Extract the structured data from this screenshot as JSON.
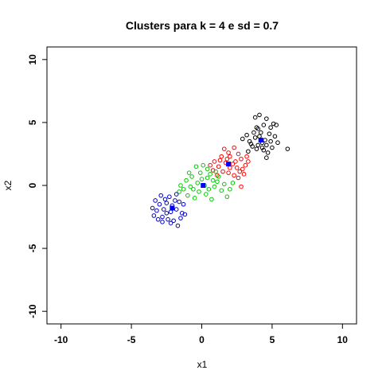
{
  "chart_data": {
    "type": "scatter",
    "title": "Clusters para k =  4  e sd =  0.7",
    "xlabel": "x1",
    "ylabel": "x2",
    "xlim": [
      -11,
      11
    ],
    "ylim": [
      -11,
      11
    ],
    "xticks": [
      -10,
      -5,
      0,
      5,
      10
    ],
    "yticks": [
      -10,
      -5,
      0,
      5,
      10
    ],
    "xtick_labels": [
      "-10",
      "-5",
      "0",
      "5",
      "10"
    ],
    "ytick_labels": [
      "-10",
      "-5",
      "0",
      "5",
      "10"
    ],
    "grid": false,
    "legend": "none",
    "series": [
      {
        "color": "#000000",
        "marker": "open-circle",
        "center": [
          4.2,
          3.6
        ],
        "points": [
          [
            3.8,
            5.4
          ],
          [
            4.1,
            5.6
          ],
          [
            4.6,
            5.3
          ],
          [
            4.4,
            4.8
          ],
          [
            5.1,
            4.9
          ],
          [
            4.9,
            4.6
          ],
          [
            5.3,
            4.8
          ],
          [
            4.0,
            4.5
          ],
          [
            3.7,
            4.2
          ],
          [
            3.2,
            4.0
          ],
          [
            2.9,
            3.7
          ],
          [
            3.4,
            3.5
          ],
          [
            3.8,
            3.8
          ],
          [
            4.1,
            3.9
          ],
          [
            4.3,
            3.4
          ],
          [
            4.5,
            3.6
          ],
          [
            4.6,
            3.2
          ],
          [
            4.9,
            3.5
          ],
          [
            5.2,
            3.9
          ],
          [
            5.0,
            3.0
          ],
          [
            4.4,
            2.8
          ],
          [
            4.7,
            2.6
          ],
          [
            3.9,
            2.9
          ],
          [
            3.6,
            3.1
          ],
          [
            3.3,
            2.7
          ],
          [
            4.2,
            4.2
          ],
          [
            4.8,
            4.1
          ],
          [
            5.4,
            3.4
          ],
          [
            6.1,
            2.9
          ],
          [
            4.6,
            2.2
          ],
          [
            3.5,
            3.3
          ],
          [
            4.0,
            3.2
          ],
          [
            4.3,
            3.0
          ],
          [
            3.9,
            4.6
          ]
        ]
      },
      {
        "color": "#ff0000",
        "marker": "open-circle",
        "center": [
          1.9,
          1.7
        ],
        "points": [
          [
            1.6,
            2.9
          ],
          [
            2.3,
            3.0
          ],
          [
            1.9,
            2.6
          ],
          [
            2.6,
            2.5
          ],
          [
            1.4,
            2.3
          ],
          [
            2.0,
            2.3
          ],
          [
            2.8,
            2.1
          ],
          [
            3.2,
            2.3
          ],
          [
            1.7,
            1.8
          ],
          [
            2.2,
            1.7
          ],
          [
            2.5,
            1.4
          ],
          [
            2.9,
            1.3
          ],
          [
            3.1,
            1.6
          ],
          [
            1.2,
            1.5
          ],
          [
            1.5,
            1.1
          ],
          [
            1.9,
            1.0
          ],
          [
            2.3,
            0.8
          ],
          [
            2.7,
            1.1
          ],
          [
            0.9,
            1.9
          ],
          [
            0.6,
            1.6
          ],
          [
            0.8,
            1.2
          ],
          [
            1.1,
            0.8
          ],
          [
            2.6,
            0.6
          ],
          [
            3.0,
            0.9
          ],
          [
            2.8,
            -0.1
          ],
          [
            2.0,
            1.4
          ],
          [
            1.3,
            2.0
          ],
          [
            3.3,
            1.9
          ],
          [
            2.4,
            1.9
          ],
          [
            1.8,
            2.1
          ]
        ]
      },
      {
        "color": "#00cc00",
        "marker": "open-circle",
        "center": [
          0.1,
          0.0
        ],
        "points": [
          [
            -0.4,
            1.5
          ],
          [
            0.4,
            1.3
          ],
          [
            -0.1,
            1.0
          ],
          [
            0.6,
            0.9
          ],
          [
            -0.7,
            0.7
          ],
          [
            0.0,
            0.5
          ],
          [
            0.8,
            0.4
          ],
          [
            1.2,
            0.7
          ],
          [
            -0.3,
            0.2
          ],
          [
            0.2,
            0.0
          ],
          [
            0.5,
            -0.3
          ],
          [
            0.9,
            -0.1
          ],
          [
            1.1,
            0.3
          ],
          [
            -1.1,
            0.4
          ],
          [
            -0.8,
            -0.1
          ],
          [
            -0.2,
            -0.5
          ],
          [
            0.3,
            -0.7
          ],
          [
            0.7,
            -1.1
          ],
          [
            -1.3,
            -0.3
          ],
          [
            -1.6,
            -0.5
          ],
          [
            -1.0,
            -0.8
          ],
          [
            -0.5,
            -1.0
          ],
          [
            1.4,
            -0.4
          ],
          [
            1.6,
            0.1
          ],
          [
            2.0,
            -0.3
          ],
          [
            1.8,
            -0.9
          ],
          [
            -1.5,
            0.0
          ],
          [
            0.1,
            1.6
          ],
          [
            1.0,
            1.1
          ],
          [
            -0.6,
            -0.3
          ],
          [
            0.4,
            0.6
          ],
          [
            -0.9,
            1.0
          ],
          [
            2.2,
            0.2
          ]
        ]
      },
      {
        "color": "#0000cc",
        "marker": "open-circle",
        "center": [
          -2.1,
          -1.8
        ],
        "points": [
          [
            -2.9,
            -0.8
          ],
          [
            -2.6,
            -1.1
          ],
          [
            -2.3,
            -0.9
          ],
          [
            -1.8,
            -0.7
          ],
          [
            -3.3,
            -1.2
          ],
          [
            -3.0,
            -1.5
          ],
          [
            -2.5,
            -1.4
          ],
          [
            -2.1,
            -1.6
          ],
          [
            -1.6,
            -1.3
          ],
          [
            -1.3,
            -1.5
          ],
          [
            -3.5,
            -1.8
          ],
          [
            -3.2,
            -2.0
          ],
          [
            -2.7,
            -1.9
          ],
          [
            -2.2,
            -2.1
          ],
          [
            -1.8,
            -1.9
          ],
          [
            -1.4,
            -2.2
          ],
          [
            -3.4,
            -2.4
          ],
          [
            -2.8,
            -2.5
          ],
          [
            -2.4,
            -2.7
          ],
          [
            -2.0,
            -2.8
          ],
          [
            -1.5,
            -2.6
          ],
          [
            -1.2,
            -2.3
          ],
          [
            -3.1,
            -2.7
          ],
          [
            -2.2,
            -3.0
          ],
          [
            -1.7,
            -3.2
          ],
          [
            -2.5,
            -2.2
          ],
          [
            -1.9,
            -1.2
          ],
          [
            -2.8,
            -2.9
          ]
        ]
      }
    ]
  }
}
